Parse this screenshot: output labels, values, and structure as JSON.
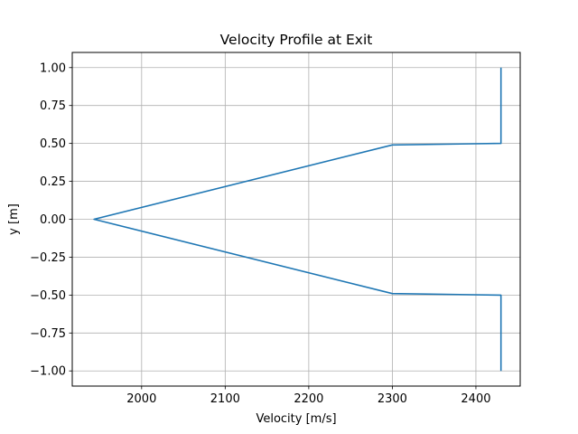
{
  "chart_data": {
    "type": "line",
    "title": "Velocity Profile at Exit",
    "xlabel": "Velocity [m/s]",
    "ylabel": "y [m]",
    "xlim": [
      1917,
      2453
    ],
    "ylim": [
      -1.1,
      1.1
    ],
    "x_ticks": [
      2000,
      2100,
      2200,
      2300,
      2400
    ],
    "y_ticks": [
      -1.0,
      -0.75,
      -0.5,
      -0.25,
      0.0,
      0.25,
      0.5,
      0.75,
      1.0
    ],
    "x_tick_labels": [
      "2000",
      "2100",
      "2200",
      "2300",
      "2400"
    ],
    "y_tick_labels": [
      "−1.00",
      "−0.75",
      "−0.50",
      "−0.25",
      "0.00",
      "0.25",
      "0.50",
      "0.75",
      "1.00"
    ],
    "grid": true,
    "series": [
      {
        "color": "#1f77b4",
        "points": [
          {
            "x": 2430,
            "y": -1.0
          },
          {
            "x": 2430,
            "y": -0.5
          },
          {
            "x": 2300,
            "y": -0.49
          },
          {
            "x": 1943,
            "y": 0.0
          },
          {
            "x": 2300,
            "y": 0.49
          },
          {
            "x": 2430,
            "y": 0.5
          },
          {
            "x": 2430,
            "y": 1.0
          }
        ]
      }
    ]
  }
}
